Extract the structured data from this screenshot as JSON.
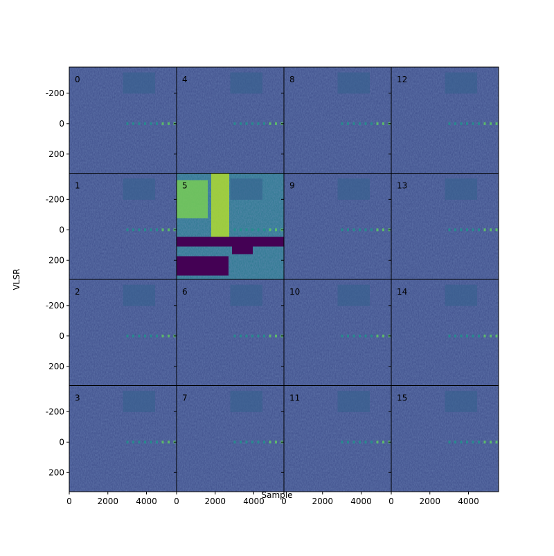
{
  "chart_data": {
    "type": "heatmap-grid",
    "xlabel": "Sample",
    "ylabel": "VLSR",
    "xlim": [
      0,
      5560
    ],
    "xticks": [
      0,
      2000,
      4000
    ],
    "ylim": [
      326,
      -372
    ],
    "yticks": [
      -200,
      0,
      200
    ],
    "colormap": "viridis",
    "panels": [
      "0",
      "1",
      "2",
      "3",
      "4",
      "5",
      "6",
      "7",
      "8",
      "9",
      "10",
      "11",
      "12",
      "13",
      "14",
      "15"
    ]
  }
}
